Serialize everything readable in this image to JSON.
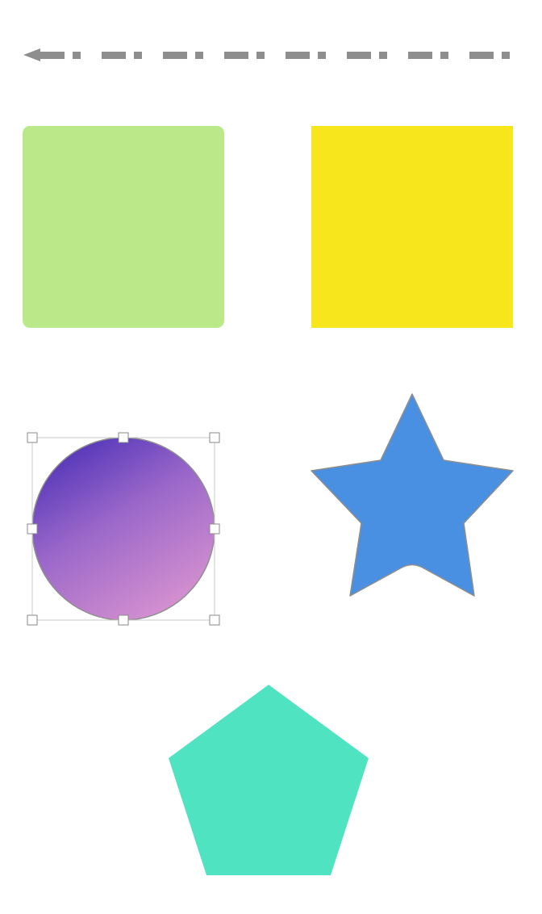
{
  "canvas": {
    "background": "#ffffff"
  },
  "shapes": {
    "dashed_arrow": {
      "kind": "line",
      "style": "dash-dot",
      "color": "#8e8e8e",
      "head": "arrow-left",
      "icon": "arrow-line-icon"
    },
    "green_square": {
      "kind": "rounded-square",
      "fill": "#bbe98a"
    },
    "yellow_square": {
      "kind": "square",
      "fill": "#f8e61d"
    },
    "gradient_circle": {
      "kind": "circle",
      "gradient_start": "#4a2fb7",
      "gradient_mid": "#9a67c9",
      "gradient_end": "#d993d0",
      "stroke": "#8f8f8f",
      "selected": true
    },
    "blue_star": {
      "kind": "star",
      "fill": "#4a90e2",
      "stroke": "#8e8e8e"
    },
    "teal_pentagon": {
      "kind": "pentagon",
      "fill": "#50e3c2"
    }
  }
}
